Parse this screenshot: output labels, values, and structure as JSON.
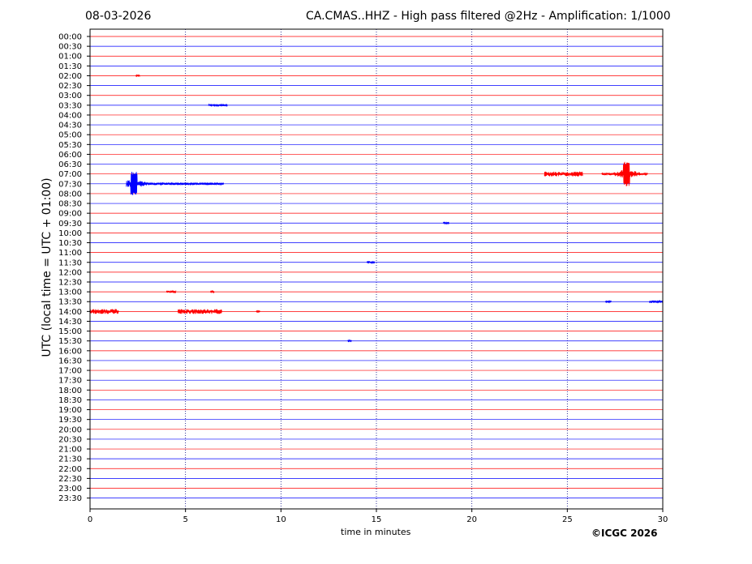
{
  "header": {
    "date": "08-03-2026",
    "title": "CA.CMAS..HHZ - High pass filtered @2Hz - Amplification: 1/1000"
  },
  "footer": {
    "copyright": "©ICGC 2026"
  },
  "chart_data": {
    "type": "line",
    "xlabel": "time in minutes",
    "ylabel": "UTC (local time = UTC + 01:00)",
    "xlim": [
      0,
      30
    ],
    "x_ticks": [
      0,
      5,
      10,
      15,
      20,
      25,
      30
    ],
    "x_tick_labels": [
      "0",
      "5",
      "10",
      "15",
      "20",
      "25",
      "30"
    ],
    "grid": "vertical dotted at each x tick",
    "rows": [
      "00:00",
      "00:30",
      "01:00",
      "01:30",
      "02:00",
      "02:30",
      "03:00",
      "03:30",
      "04:00",
      "04:30",
      "05:00",
      "05:30",
      "06:00",
      "06:30",
      "07:00",
      "07:30",
      "08:00",
      "08:30",
      "09:00",
      "09:30",
      "10:00",
      "10:30",
      "11:00",
      "11:30",
      "12:00",
      "12:30",
      "13:00",
      "13:30",
      "14:00",
      "14:30",
      "15:00",
      "15:30",
      "16:00",
      "16:30",
      "17:00",
      "17:30",
      "18:00",
      "18:30",
      "19:00",
      "19:30",
      "20:00",
      "20:30",
      "21:00",
      "21:30",
      "22:00",
      "22:30",
      "23:00",
      "23:30"
    ],
    "row_colors": [
      "#ff0000",
      "#0000ff"
    ],
    "events": [
      {
        "row": "02:00",
        "x_start": 2.4,
        "x_end": 2.6,
        "amplitude": "small"
      },
      {
        "row": "03:30",
        "x_start": 6.2,
        "x_end": 7.2,
        "amplitude": "small"
      },
      {
        "row": "07:00",
        "x_start": 23.8,
        "x_end": 25.8,
        "amplitude": "medium"
      },
      {
        "row": "07:00",
        "x_start": 26.8,
        "x_end": 29.2,
        "amplitude": "large",
        "peak_x": 28.1
      },
      {
        "row": "07:30",
        "x_start": 1.9,
        "x_end": 7.0,
        "amplitude": "large",
        "peak_x": 2.3
      },
      {
        "row": "09:30",
        "x_start": 18.5,
        "x_end": 18.8,
        "amplitude": "small"
      },
      {
        "row": "11:30",
        "x_start": 14.5,
        "x_end": 14.9,
        "amplitude": "small"
      },
      {
        "row": "13:00",
        "x_start": 4.0,
        "x_end": 4.5,
        "amplitude": "small"
      },
      {
        "row": "13:00",
        "x_start": 6.3,
        "x_end": 6.5,
        "amplitude": "small"
      },
      {
        "row": "13:30",
        "x_start": 27.0,
        "x_end": 27.3,
        "amplitude": "small"
      },
      {
        "row": "13:30",
        "x_start": 29.3,
        "x_end": 30.0,
        "amplitude": "small"
      },
      {
        "row": "14:00",
        "x_start": 0.0,
        "x_end": 1.5,
        "amplitude": "medium"
      },
      {
        "row": "14:00",
        "x_start": 4.6,
        "x_end": 6.9,
        "amplitude": "medium"
      },
      {
        "row": "14:00",
        "x_start": 8.7,
        "x_end": 8.9,
        "amplitude": "small"
      },
      {
        "row": "15:30",
        "x_start": 13.5,
        "x_end": 13.7,
        "amplitude": "small"
      }
    ]
  }
}
